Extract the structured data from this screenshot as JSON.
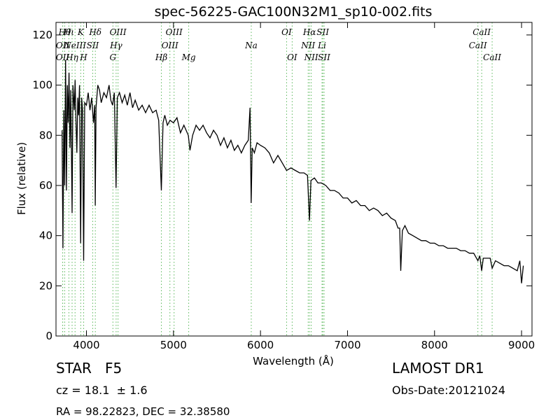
{
  "chart_data": {
    "type": "line",
    "title": "spec-56225-GAC100N32M1_sp10-002.fits",
    "xlabel": "Wavelength (Å)",
    "ylabel": "Flux (relative)",
    "xlim": [
      3650,
      9120
    ],
    "ylim": [
      0,
      125
    ],
    "xticks": [
      4000,
      5000,
      6000,
      7000,
      8000,
      9000
    ],
    "yticks": [
      0,
      20,
      40,
      60,
      80,
      100,
      120
    ],
    "grid": false,
    "series": [
      {
        "color": "#000000",
        "points": [
          [
            3720,
            82
          ],
          [
            3730,
            35
          ],
          [
            3740,
            90
          ],
          [
            3750,
            60
          ],
          [
            3760,
            110
          ],
          [
            3770,
            58
          ],
          [
            3780,
            100
          ],
          [
            3790,
            85
          ],
          [
            3800,
            105
          ],
          [
            3810,
            75
          ],
          [
            3820,
            98
          ],
          [
            3830,
            65
          ],
          [
            3835,
            49
          ],
          [
            3845,
            100
          ],
          [
            3860,
            90
          ],
          [
            3870,
            102
          ],
          [
            3880,
            85
          ],
          [
            3890,
            73
          ],
          [
            3900,
            95
          ],
          [
            3910,
            88
          ],
          [
            3920,
            100
          ],
          [
            3933,
            37
          ],
          [
            3945,
            95
          ],
          [
            3955,
            90
          ],
          [
            3968,
            30
          ],
          [
            3980,
            93
          ],
          [
            4000,
            92
          ],
          [
            4020,
            97
          ],
          [
            4040,
            90
          ],
          [
            4060,
            95
          ],
          [
            4080,
            85
          ],
          [
            4095,
            92
          ],
          [
            4101,
            52
          ],
          [
            4110,
            91
          ],
          [
            4130,
            100
          ],
          [
            4150,
            98
          ],
          [
            4170,
            93
          ],
          [
            4200,
            97
          ],
          [
            4230,
            95
          ],
          [
            4260,
            100
          ],
          [
            4280,
            94
          ],
          [
            4300,
            92
          ],
          [
            4320,
            97
          ],
          [
            4340,
            59
          ],
          [
            4355,
            95
          ],
          [
            4380,
            97
          ],
          [
            4410,
            93
          ],
          [
            4440,
            96
          ],
          [
            4470,
            92
          ],
          [
            4500,
            97
          ],
          [
            4530,
            91
          ],
          [
            4560,
            94
          ],
          [
            4600,
            90
          ],
          [
            4640,
            92
          ],
          [
            4680,
            89
          ],
          [
            4720,
            92
          ],
          [
            4760,
            89
          ],
          [
            4800,
            90
          ],
          [
            4830,
            86
          ],
          [
            4861,
            58
          ],
          [
            4880,
            85
          ],
          [
            4900,
            88
          ],
          [
            4930,
            84
          ],
          [
            4960,
            86
          ],
          [
            5000,
            85
          ],
          [
            5040,
            87
          ],
          [
            5080,
            81
          ],
          [
            5120,
            84
          ],
          [
            5170,
            80
          ],
          [
            5190,
            74
          ],
          [
            5220,
            80
          ],
          [
            5260,
            84
          ],
          [
            5300,
            82
          ],
          [
            5340,
            84
          ],
          [
            5380,
            81
          ],
          [
            5420,
            79
          ],
          [
            5460,
            82
          ],
          [
            5500,
            80
          ],
          [
            5540,
            76
          ],
          [
            5580,
            79
          ],
          [
            5620,
            75
          ],
          [
            5660,
            78
          ],
          [
            5700,
            74
          ],
          [
            5740,
            76
          ],
          [
            5780,
            73
          ],
          [
            5820,
            76
          ],
          [
            5860,
            78
          ],
          [
            5880,
            91
          ],
          [
            5893,
            53
          ],
          [
            5905,
            75
          ],
          [
            5930,
            73
          ],
          [
            5960,
            77
          ],
          [
            6000,
            76
          ],
          [
            6050,
            75
          ],
          [
            6100,
            73
          ],
          [
            6150,
            69
          ],
          [
            6200,
            72
          ],
          [
            6250,
            69
          ],
          [
            6300,
            66
          ],
          [
            6350,
            67
          ],
          [
            6400,
            66
          ],
          [
            6450,
            65
          ],
          [
            6500,
            65
          ],
          [
            6540,
            64
          ],
          [
            6563,
            46
          ],
          [
            6580,
            62
          ],
          [
            6620,
            63
          ],
          [
            6660,
            61
          ],
          [
            6700,
            61
          ],
          [
            6750,
            60
          ],
          [
            6800,
            58
          ],
          [
            6850,
            58
          ],
          [
            6900,
            57
          ],
          [
            6950,
            55
          ],
          [
            7000,
            55
          ],
          [
            7050,
            53
          ],
          [
            7100,
            54
          ],
          [
            7150,
            52
          ],
          [
            7200,
            52
          ],
          [
            7250,
            50
          ],
          [
            7300,
            51
          ],
          [
            7350,
            50
          ],
          [
            7400,
            48
          ],
          [
            7450,
            49
          ],
          [
            7500,
            47
          ],
          [
            7550,
            46
          ],
          [
            7580,
            43
          ],
          [
            7600,
            43
          ],
          [
            7612,
            26
          ],
          [
            7630,
            42
          ],
          [
            7660,
            44
          ],
          [
            7700,
            41
          ],
          [
            7750,
            40
          ],
          [
            7800,
            39
          ],
          [
            7850,
            38
          ],
          [
            7900,
            38
          ],
          [
            7950,
            37
          ],
          [
            8000,
            37
          ],
          [
            8050,
            36
          ],
          [
            8100,
            36
          ],
          [
            8150,
            35
          ],
          [
            8200,
            35
          ],
          [
            8250,
            35
          ],
          [
            8300,
            34
          ],
          [
            8350,
            34
          ],
          [
            8400,
            33
          ],
          [
            8450,
            33
          ],
          [
            8498,
            30
          ],
          [
            8520,
            32
          ],
          [
            8542,
            26
          ],
          [
            8560,
            31
          ],
          [
            8600,
            31
          ],
          [
            8640,
            31
          ],
          [
            8662,
            27
          ],
          [
            8700,
            30
          ],
          [
            8750,
            29
          ],
          [
            8800,
            28
          ],
          [
            8850,
            28
          ],
          [
            8900,
            27
          ],
          [
            8950,
            26
          ],
          [
            8980,
            30
          ],
          [
            9000,
            21
          ],
          [
            9020,
            28
          ]
        ]
      }
    ],
    "line_color": "#5cb85c",
    "lines": [
      {
        "x": 3727,
        "label": "OII",
        "row": 1
      },
      {
        "x": 3727,
        "label": "OII",
        "row": 2
      },
      {
        "x": 3750,
        "label": "Hθ",
        "row": 0
      },
      {
        "x": 3798,
        "label": "Hι",
        "row": 0
      },
      {
        "x": 3835,
        "label": "Hη",
        "row": 2
      },
      {
        "x": 3869,
        "label": "NeIII",
        "row": 1
      },
      {
        "x": 3934,
        "label": "K",
        "row": 0
      },
      {
        "x": 3968,
        "label": "H",
        "row": 2
      },
      {
        "x": 4072,
        "label": "SII",
        "row": 1
      },
      {
        "x": 4102,
        "label": "Hδ",
        "row": 0
      },
      {
        "x": 4304,
        "label": "G",
        "row": 2
      },
      {
        "x": 4341,
        "label": "Hγ",
        "row": 1
      },
      {
        "x": 4363,
        "label": "OIII",
        "row": 0
      },
      {
        "x": 4861,
        "label": "Hβ",
        "row": 2
      },
      {
        "x": 4959,
        "label": "OIII",
        "row": 1
      },
      {
        "x": 5007,
        "label": "OIII",
        "row": 0
      },
      {
        "x": 5175,
        "label": "Mg",
        "row": 2
      },
      {
        "x": 5894,
        "label": "Na",
        "row": 1
      },
      {
        "x": 6300,
        "label": "OI",
        "row": 0
      },
      {
        "x": 6364,
        "label": "OI",
        "row": 2
      },
      {
        "x": 6548,
        "label": "NII",
        "row": 1
      },
      {
        "x": 6563,
        "label": "Hα",
        "row": 0
      },
      {
        "x": 6583,
        "label": "NII",
        "row": 2
      },
      {
        "x": 6707,
        "label": "Li",
        "row": 1
      },
      {
        "x": 6716,
        "label": "SII",
        "row": 0
      },
      {
        "x": 6731,
        "label": "SII",
        "row": 2
      },
      {
        "x": 8498,
        "label": "CaII",
        "row": 1
      },
      {
        "x": 8542,
        "label": "CaII",
        "row": 0
      },
      {
        "x": 8662,
        "label": "CaII",
        "row": 2
      }
    ]
  },
  "info": {
    "object_class": "STAR",
    "subclass": "F5",
    "redshift_text": "cz = 18.1  ± 1.6",
    "coords_text": "RA = 98.22823, DEC = 32.38580",
    "survey": "LAMOST DR1",
    "obs_date": "Obs-Date:20121024"
  }
}
